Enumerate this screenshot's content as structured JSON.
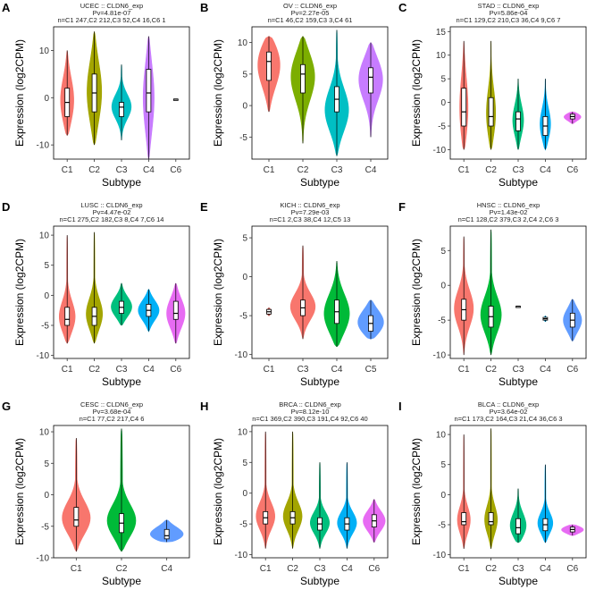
{
  "figure": {
    "ylabel": "Expression (log2CPM)",
    "xlabel": "Subtype"
  },
  "chart_data": [
    {
      "type": "violin",
      "panel_label": "A",
      "title": "UCEC :: CLDN6_exp",
      "pvalue": "Pv=4.81e-07",
      "counts": "n=C1 247,C2 212,C3 52,C4 16,C6 1",
      "xlabel": "Subtype",
      "ylabel": "Expression (log2CPM)",
      "ylim": [
        -13,
        15
      ],
      "yticks": [
        "10",
        "0",
        "-10"
      ],
      "ytick_values": [
        10,
        0,
        -10
      ],
      "categories": [
        "C1",
        "C2",
        "C3",
        "C4",
        "C6"
      ],
      "series": [
        {
          "name": "C1",
          "color": "#F8766D",
          "min": -8,
          "q1": -4,
          "median": -1,
          "q3": 2,
          "max": 10,
          "mode": -1,
          "width": 0.55
        },
        {
          "name": "C2",
          "color": "#A3A500",
          "min": -10,
          "q1": -3,
          "median": 1,
          "q3": 5,
          "max": 14,
          "mode": 1,
          "width": 0.6
        },
        {
          "name": "C3",
          "color": "#00BFC4",
          "min": -9,
          "q1": -4,
          "median": -2,
          "q3": -1,
          "max": 7,
          "mode": -2,
          "width": 0.8
        },
        {
          "name": "C4",
          "color": "#C77CFF",
          "min": -13,
          "q1": -3,
          "median": 1,
          "q3": 6,
          "max": 13,
          "mode": 0,
          "width": 0.45
        },
        {
          "name": "C6",
          "color": "#FF61CC",
          "min": -0.3,
          "q1": -0.3,
          "median": -0.3,
          "q3": -0.3,
          "max": -0.3,
          "mode": -0.3,
          "width": 0
        }
      ]
    },
    {
      "type": "violin",
      "panel_label": "B",
      "title": "OV :: CLDN6_exp",
      "pvalue": "Pv=2.27e-05",
      "counts": "n=C1 46,C2 159,C3 3,C4 61",
      "xlabel": "Subtype",
      "ylabel": "Expression (log2CPM)",
      "ylim": [
        -8.5,
        12.5
      ],
      "yticks": [
        "10",
        "5",
        "0",
        "-5"
      ],
      "ytick_values": [
        10,
        5,
        0,
        -5
      ],
      "categories": [
        "C1",
        "C2",
        "C3",
        "C4"
      ],
      "series": [
        {
          "name": "C1",
          "color": "#F8766D",
          "min": -1,
          "q1": 4,
          "median": 7,
          "q3": 8.5,
          "max": 11,
          "mode": 7,
          "width": 0.75
        },
        {
          "name": "C2",
          "color": "#7CAE00",
          "min": -6,
          "q1": 2,
          "median": 5,
          "q3": 6.5,
          "max": 11,
          "mode": 5,
          "width": 0.8
        },
        {
          "name": "C3",
          "color": "#00BFC4",
          "min": -8,
          "q1": -1,
          "median": 1,
          "q3": 3,
          "max": 12,
          "mode": -1,
          "width": 0.8
        },
        {
          "name": "C4",
          "color": "#C77CFF",
          "min": -5,
          "q1": 2,
          "median": 4.5,
          "q3": 6,
          "max": 10,
          "mode": 4.5,
          "width": 0.8
        }
      ]
    },
    {
      "type": "violin",
      "panel_label": "C",
      "title": "STAD :: CLDN6_exp",
      "pvalue": "Pv=5.86e-04",
      "counts": "n=C1 129,C2 210,C3 36,C4 9,C6 7",
      "xlabel": "Subtype",
      "ylabel": "Expression (log2CPM)",
      "ylim": [
        -12,
        16
      ],
      "yticks": [
        "15",
        "10",
        "5",
        "0",
        "-5",
        "-10"
      ],
      "ytick_values": [
        15,
        10,
        5,
        0,
        -5,
        -10
      ],
      "categories": [
        "C1",
        "C2",
        "C3",
        "C4",
        "C6"
      ],
      "series": [
        {
          "name": "C1",
          "color": "#F8766D",
          "min": -10,
          "q1": -5,
          "median": -2,
          "q3": 3,
          "max": 13,
          "mode": -2,
          "width": 0.35
        },
        {
          "name": "C2",
          "color": "#A3A500",
          "min": -10,
          "q1": -5,
          "median": -3,
          "q3": 1,
          "max": 13,
          "mode": -3,
          "width": 0.4
        },
        {
          "name": "C3",
          "color": "#00BF7D",
          "min": -10,
          "q1": -6,
          "median": -3.5,
          "q3": -2,
          "max": 5,
          "mode": -4,
          "width": 0.45
        },
        {
          "name": "C4",
          "color": "#00B0F6",
          "min": -10,
          "q1": -7,
          "median": -5,
          "q3": -3,
          "max": 5,
          "mode": -5,
          "width": 0.45
        },
        {
          "name": "C6",
          "color": "#E76BF3",
          "min": -4.5,
          "q1": -3.5,
          "median": -3,
          "q3": -2.5,
          "max": -2,
          "mode": -3,
          "width": 0.7
        }
      ]
    },
    {
      "type": "violin",
      "panel_label": "D",
      "title": "LUSC :: CLDN6_exp",
      "pvalue": "Pv=4.47e-02",
      "counts": "n=C1 275,C2 182,C3 8,C4 7,C6 14",
      "xlabel": "Subtype",
      "ylabel": "Expression (log2CPM)",
      "ylim": [
        -10.5,
        11.5
      ],
      "yticks": [
        "10",
        "5",
        "0",
        "-5",
        "-10"
      ],
      "ytick_values": [
        10,
        5,
        0,
        -5,
        -10
      ],
      "categories": [
        "C1",
        "C2",
        "C3",
        "C4",
        "C6"
      ],
      "series": [
        {
          "name": "C1",
          "color": "#F8766D",
          "min": -8,
          "q1": -5,
          "median": -4,
          "q3": -2,
          "max": 10,
          "mode": -4,
          "width": 0.75
        },
        {
          "name": "C2",
          "color": "#A3A500",
          "min": -8,
          "q1": -5,
          "median": -3.5,
          "q3": -2,
          "max": 10.5,
          "mode": -3.5,
          "width": 0.75
        },
        {
          "name": "C3",
          "color": "#00BF7D",
          "min": -5,
          "q1": -3,
          "median": -2,
          "q3": -1,
          "max": 2,
          "mode": -2,
          "width": 0.85
        },
        {
          "name": "C4",
          "color": "#00B0F6",
          "min": -6,
          "q1": -3.5,
          "median": -2.5,
          "q3": -1.5,
          "max": 1,
          "mode": -2.5,
          "width": 0.85
        },
        {
          "name": "C6",
          "color": "#E76BF3",
          "min": -8,
          "q1": -4,
          "median": -3,
          "q3": -1,
          "max": 2,
          "mode": -3,
          "width": 0.75
        }
      ]
    },
    {
      "type": "violin",
      "panel_label": "E",
      "title": "KICH :: CLDN6_exp",
      "pvalue": "Pv=7.29e-03",
      "counts": "n=C1 2,C3 38,C4 12,C5 13",
      "xlabel": "Subtype",
      "ylabel": "Expression (log2CPM)",
      "ylim": [
        -10.5,
        6.5
      ],
      "yticks": [
        "5",
        "0",
        "-5",
        "-10"
      ],
      "ytick_values": [
        5,
        0,
        -5,
        -10
      ],
      "categories": [
        "C1",
        "C3",
        "C4",
        "C5"
      ],
      "series": [
        {
          "name": "C1",
          "color": "#F8766D",
          "min": -5,
          "q1": -4.8,
          "median": -4.5,
          "q3": -4.2,
          "max": -4,
          "mode": -4.5,
          "width": 0.15
        },
        {
          "name": "C3",
          "color": "#F8766D",
          "min": -8,
          "q1": -5,
          "median": -4,
          "q3": -3,
          "max": 4,
          "mode": -4,
          "width": 0.85
        },
        {
          "name": "C4",
          "color": "#00BA38",
          "min": -9,
          "q1": -6,
          "median": -4.5,
          "q3": -3,
          "max": 2,
          "mode": -5,
          "width": 0.85
        },
        {
          "name": "C5",
          "color": "#619CFF",
          "min": -8,
          "q1": -7,
          "median": -6,
          "q3": -5,
          "max": -3,
          "mode": -6,
          "width": 0.85
        }
      ]
    },
    {
      "type": "violin",
      "panel_label": "F",
      "title": "HNSC :: CLDN6_exp",
      "pvalue": "Pv=1.43e-02",
      "counts": "n=C1 128,C2 379,C3 2,C4 2,C6 3",
      "xlabel": "Subtype",
      "ylabel": "Expression (log2CPM)",
      "ylim": [
        -10.5,
        8.5
      ],
      "yticks": [
        "5",
        "0",
        "-5",
        "-10"
      ],
      "ytick_values": [
        5,
        0,
        -5,
        -10
      ],
      "categories": [
        "C1",
        "C2",
        "C3",
        "C4",
        "C6"
      ],
      "series": [
        {
          "name": "C1",
          "color": "#F8766D",
          "min": -10,
          "q1": -5,
          "median": -3.5,
          "q3": -2,
          "max": 7,
          "mode": -3.5,
          "width": 0.8
        },
        {
          "name": "C2",
          "color": "#00BA38",
          "min": -10,
          "q1": -6,
          "median": -4.5,
          "q3": -3,
          "max": 8,
          "mode": -4.5,
          "width": 0.9
        },
        {
          "name": "C3",
          "color": "#00BF7D",
          "min": -3,
          "q1": -3,
          "median": -3,
          "q3": -3,
          "max": -3,
          "mode": -3,
          "width": 0
        },
        {
          "name": "C4",
          "color": "#00B0F6",
          "min": -5.2,
          "q1": -5,
          "median": -4.8,
          "q3": -4.6,
          "max": -4.4,
          "mode": -4.8,
          "width": 0.12
        },
        {
          "name": "C6",
          "color": "#619CFF",
          "min": -8,
          "q1": -6,
          "median": -5,
          "q3": -4,
          "max": -2,
          "mode": -5,
          "width": 0.75
        }
      ]
    },
    {
      "type": "violin",
      "panel_label": "G",
      "title": "CESC :: CLDN6_exp",
      "pvalue": "Pv=3.68e-04",
      "counts": "n=C1 77,C2 217,C4 6",
      "xlabel": "Subtype",
      "ylabel": "Expression (log2CPM)",
      "ylim": [
        -10,
        11
      ],
      "yticks": [
        "10",
        "5",
        "0",
        "-5",
        "-10"
      ],
      "ytick_values": [
        10,
        5,
        0,
        -5,
        -10
      ],
      "categories": [
        "C1",
        "C2",
        "C4"
      ],
      "series": [
        {
          "name": "C1",
          "color": "#F8766D",
          "min": -9,
          "q1": -5,
          "median": -4,
          "q3": -2,
          "max": 9,
          "mode": -4,
          "width": 0.75
        },
        {
          "name": "C2",
          "color": "#00BA38",
          "min": -9,
          "q1": -6,
          "median": -4.5,
          "q3": -3,
          "max": 10.5,
          "mode": -4.5,
          "width": 0.8
        },
        {
          "name": "C4",
          "color": "#619CFF",
          "min": -7.5,
          "q1": -7,
          "median": -6.5,
          "q3": -5.5,
          "max": -4,
          "mode": -6.5,
          "width": 0.85
        }
      ]
    },
    {
      "type": "violin",
      "panel_label": "H",
      "title": "BRCA :: CLDN6_exp",
      "pvalue": "Pv=8.12e-10",
      "counts": "n=C1 369,C2 390,C3 191,C4 92,C6 40",
      "xlabel": "Subtype",
      "ylabel": "Expression (log2CPM)",
      "ylim": [
        -10.5,
        11
      ],
      "yticks": [
        "10",
        "5",
        "0",
        "-5",
        "-10"
      ],
      "ytick_values": [
        10,
        5,
        0,
        -5,
        -10
      ],
      "categories": [
        "C1",
        "C2",
        "C3",
        "C4",
        "C6"
      ],
      "series": [
        {
          "name": "C1",
          "color": "#F8766D",
          "min": -9,
          "q1": -5,
          "median": -4,
          "q3": -3,
          "max": 10,
          "mode": -4,
          "width": 0.85
        },
        {
          "name": "C2",
          "color": "#A3A500",
          "min": -9,
          "q1": -5,
          "median": -4,
          "q3": -3,
          "max": 10,
          "mode": -4,
          "width": 0.85
        },
        {
          "name": "C3",
          "color": "#00BF7D",
          "min": -9,
          "q1": -6,
          "median": -5,
          "q3": -4,
          "max": 5,
          "mode": -5,
          "width": 0.85
        },
        {
          "name": "C4",
          "color": "#00B0F6",
          "min": -9,
          "q1": -6,
          "median": -5,
          "q3": -4,
          "max": 5,
          "mode": -5,
          "width": 0.85
        },
        {
          "name": "C6",
          "color": "#E76BF3",
          "min": -8,
          "q1": -5.5,
          "median": -4.5,
          "q3": -3.5,
          "max": -1,
          "mode": -4.5,
          "width": 0.9
        }
      ]
    },
    {
      "type": "violin",
      "panel_label": "I",
      "title": "BLCA :: CLDN6_exp",
      "pvalue": "Pv=3.64e-02",
      "counts": "n=C1 173,C2 164,C3 21,C4 36,C6 3",
      "xlabel": "Subtype",
      "ylabel": "Expression (log2CPM)",
      "ylim": [
        -10.5,
        11.5
      ],
      "yticks": [
        "10",
        "5",
        "0",
        "-5",
        "-10"
      ],
      "ytick_values": [
        10,
        5,
        0,
        -5,
        -10
      ],
      "categories": [
        "C1",
        "C2",
        "C3",
        "C4",
        "C6"
      ],
      "series": [
        {
          "name": "C1",
          "color": "#F8766D",
          "min": -9,
          "q1": -5,
          "median": -4.5,
          "q3": -3,
          "max": 10,
          "mode": -4.5,
          "width": 0.6
        },
        {
          "name": "C2",
          "color": "#A3A500",
          "min": -9,
          "q1": -5,
          "median": -4.5,
          "q3": -3,
          "max": 11,
          "mode": -4.5,
          "width": 0.6
        },
        {
          "name": "C3",
          "color": "#00BF7D",
          "min": -8,
          "q1": -6.5,
          "median": -5.5,
          "q3": -4,
          "max": 1,
          "mode": -5.5,
          "width": 0.7
        },
        {
          "name": "C4",
          "color": "#00B0F6",
          "min": -8,
          "q1": -6,
          "median": -5,
          "q3": -4,
          "max": 5,
          "mode": -5,
          "width": 0.7
        },
        {
          "name": "C6",
          "color": "#E76BF3",
          "min": -6.8,
          "q1": -6.2,
          "median": -5.8,
          "q3": -5.4,
          "max": -5,
          "mode": -5.8,
          "width": 0.9
        }
      ]
    }
  ]
}
